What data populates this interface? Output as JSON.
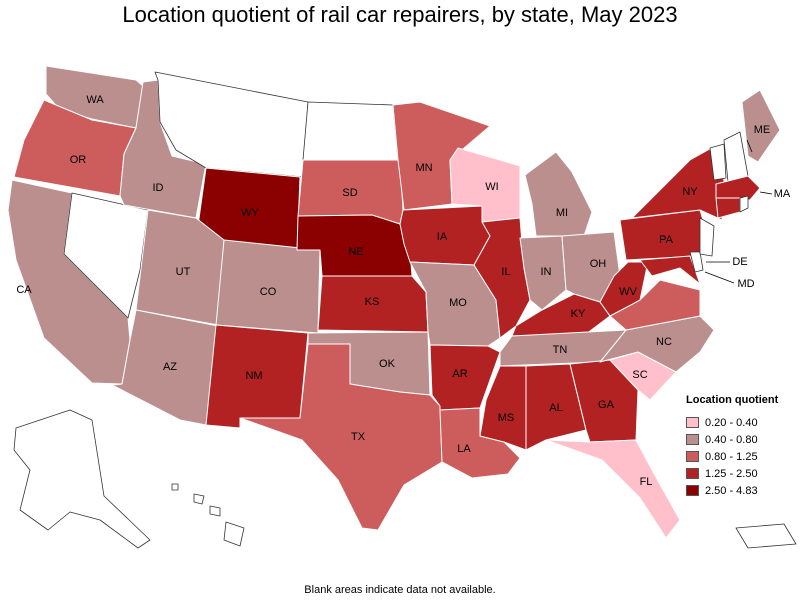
{
  "title": "Location quotient of rail car repairers, by state, May 2023",
  "footnote": "Blank areas indicate data not available.",
  "legend": {
    "title": "Location quotient",
    "bins": [
      {
        "label": "0.20 - 0.40",
        "color": "#ffc0cb"
      },
      {
        "label": "0.40 - 0.80",
        "color": "#bc8f8f"
      },
      {
        "label": "0.80 - 1.25",
        "color": "#cd5c5c"
      },
      {
        "label": "1.25 - 2.50",
        "color": "#b22222"
      },
      {
        "label": "2.50 - 4.83",
        "color": "#8b0000"
      }
    ]
  },
  "states": {
    "WA": {
      "abbr": "WA",
      "bin": 1
    },
    "OR": {
      "abbr": "OR",
      "bin": 2
    },
    "CA": {
      "abbr": "CA",
      "bin": 1
    },
    "ID": {
      "abbr": "ID",
      "bin": 1
    },
    "NV": {
      "abbr": "",
      "bin": -1
    },
    "MT": {
      "abbr": "",
      "bin": -1
    },
    "WY": {
      "abbr": "WY",
      "bin": 4
    },
    "UT": {
      "abbr": "UT",
      "bin": 1
    },
    "AZ": {
      "abbr": "AZ",
      "bin": 1
    },
    "CO": {
      "abbr": "CO",
      "bin": 1
    },
    "NM": {
      "abbr": "NM",
      "bin": 3
    },
    "ND": {
      "abbr": "",
      "bin": -1
    },
    "SD": {
      "abbr": "SD",
      "bin": 2
    },
    "NE": {
      "abbr": "NE",
      "bin": 4
    },
    "KS": {
      "abbr": "KS",
      "bin": 3
    },
    "OK": {
      "abbr": "OK",
      "bin": 1
    },
    "TX": {
      "abbr": "TX",
      "bin": 2
    },
    "MN": {
      "abbr": "MN",
      "bin": 2
    },
    "IA": {
      "abbr": "IA",
      "bin": 3
    },
    "MO": {
      "abbr": "MO",
      "bin": 1
    },
    "AR": {
      "abbr": "AR",
      "bin": 3
    },
    "LA": {
      "abbr": "LA",
      "bin": 2
    },
    "WI": {
      "abbr": "WI",
      "bin": 0
    },
    "IL": {
      "abbr": "IL",
      "bin": 3
    },
    "MI": {
      "abbr": "MI",
      "bin": 1
    },
    "IN": {
      "abbr": "IN",
      "bin": 1
    },
    "OH": {
      "abbr": "OH",
      "bin": 1
    },
    "KY": {
      "abbr": "KY",
      "bin": 3
    },
    "TN": {
      "abbr": "TN",
      "bin": 1
    },
    "MS": {
      "abbr": "MS",
      "bin": 3
    },
    "AL": {
      "abbr": "AL",
      "bin": 3
    },
    "GA": {
      "abbr": "GA",
      "bin": 3
    },
    "FL": {
      "abbr": "FL",
      "bin": 0
    },
    "SC": {
      "abbr": "SC",
      "bin": 0
    },
    "NC": {
      "abbr": "NC",
      "bin": 1
    },
    "VA": {
      "abbr": "",
      "bin": 2
    },
    "WV": {
      "abbr": "WV",
      "bin": 3
    },
    "PA": {
      "abbr": "PA",
      "bin": 3
    },
    "NY": {
      "abbr": "NY",
      "bin": 3
    },
    "MD": {
      "abbr": "MD",
      "bin": 3
    },
    "DE": {
      "abbr": "DE",
      "bin": -1
    },
    "NJ": {
      "abbr": "",
      "bin": -1
    },
    "ME": {
      "abbr": "ME",
      "bin": 1
    },
    "VT": {
      "abbr": "",
      "bin": -1
    },
    "NH": {
      "abbr": "",
      "bin": -1
    },
    "MA": {
      "abbr": "MA",
      "bin": 3
    },
    "CT": {
      "abbr": "",
      "bin": 3
    },
    "RI": {
      "abbr": "",
      "bin": -1
    },
    "AK": {
      "abbr": "",
      "bin": -1
    },
    "HI": {
      "abbr": "",
      "bin": -1
    },
    "PR": {
      "abbr": "",
      "bin": -1
    }
  }
}
